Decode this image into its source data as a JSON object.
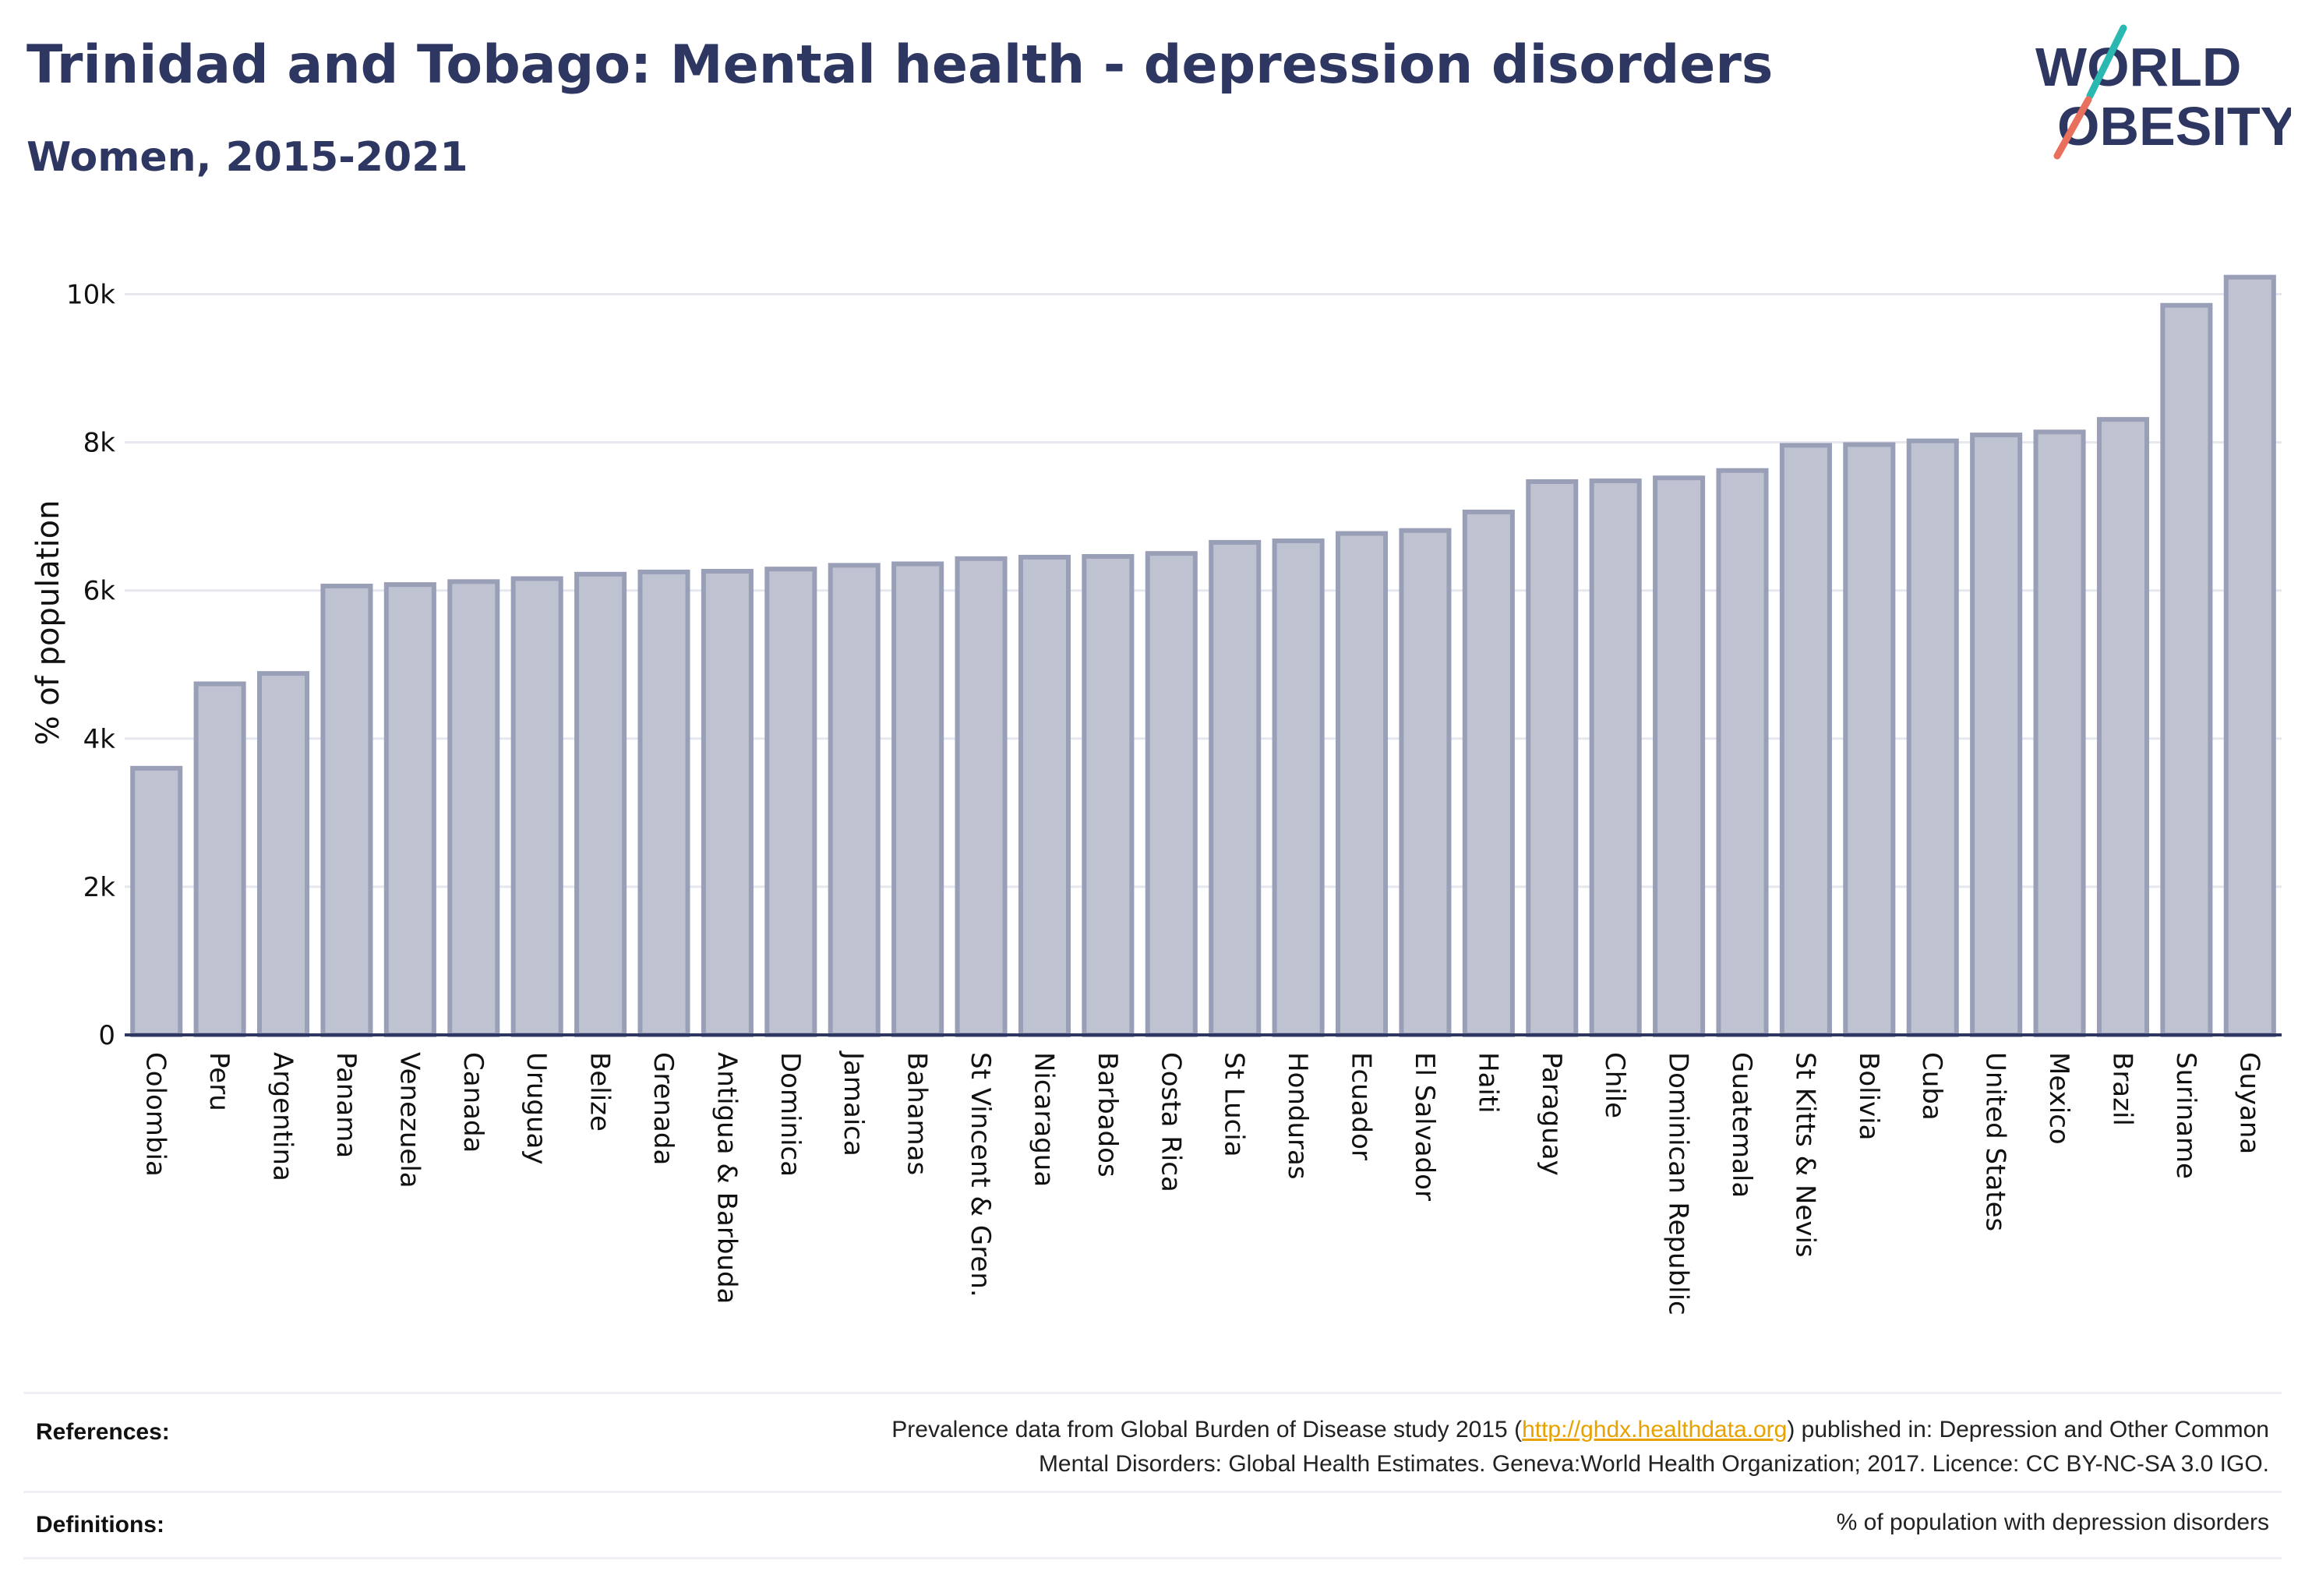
{
  "header": {
    "title": "Trinidad and Tobago: Mental health - depression disorders",
    "subtitle": "Women, 2015-2021"
  },
  "logo": {
    "line1": "WORLD",
    "line2": "OBESITY",
    "accent_teal": "#2ab8b0",
    "accent_coral": "#e8705c"
  },
  "colors": {
    "bar_fill": "#bfc2d0",
    "bar_stroke": "#9a9fb8",
    "axis": "#2e3662",
    "grid": "#e6e7ee",
    "text": "#2e3662"
  },
  "chart_data": {
    "type": "bar",
    "ylabel": "% of population",
    "ylim": [
      0,
      10500
    ],
    "yticks": [
      0,
      2000,
      4000,
      6000,
      8000,
      10000
    ],
    "ytick_labels": [
      "0",
      "2k",
      "4k",
      "6k",
      "8k",
      "10k"
    ],
    "grid": true,
    "categories": [
      "Colombia",
      "Peru",
      "Argentina",
      "Panama",
      "Venezuela",
      "Canada",
      "Uruguay",
      "Belize",
      "Grenada",
      "Antigua & Barbuda",
      "Dominica",
      "Jamaica",
      "Bahamas",
      "St Vincent & Gren.",
      "Nicaragua",
      "Barbados",
      "Costa Rica",
      "St Lucia",
      "Honduras",
      "Ecuador",
      "El Salvador",
      "Haiti",
      "Paraguay",
      "Chile",
      "Dominican Republic",
      "Guatemala",
      "St Kitts & Nevis",
      "Bolivia",
      "Cuba",
      "United States",
      "Mexico",
      "Brazil",
      "Suriname",
      "Guyana"
    ],
    "values": [
      3600,
      4740,
      4880,
      6060,
      6080,
      6120,
      6160,
      6220,
      6250,
      6260,
      6290,
      6340,
      6360,
      6430,
      6450,
      6460,
      6500,
      6650,
      6670,
      6770,
      6810,
      7060,
      7470,
      7480,
      7520,
      7620,
      7960,
      7970,
      8020,
      8100,
      8140,
      8310,
      9850,
      10230
    ]
  },
  "footer": {
    "references_label": "References:",
    "references_pre": "Prevalence data from Global Burden of Disease study 2015 (",
    "references_link": "http://ghdx.healthdata.org",
    "references_post": ") published in: Depression and Other Common",
    "references_line2": "Mental Disorders: Global Health Estimates. Geneva:World Health Organization; 2017. Licence: CC BY-NC-SA 3.0 IGO.",
    "definitions_label": "Definitions:",
    "definitions_text": "% of population with depression disorders"
  }
}
